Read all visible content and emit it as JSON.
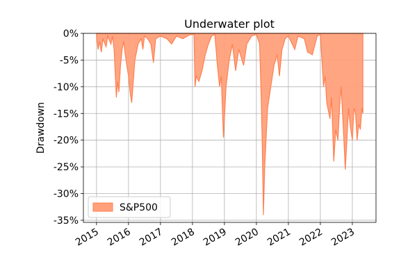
{
  "chart_data": {
    "type": "area",
    "title": "Underwater plot",
    "y_label": "Drawdown",
    "x": [
      2015.0,
      2015.05,
      2015.1,
      2015.15,
      2015.2,
      2015.3,
      2015.35,
      2015.45,
      2015.5,
      2015.55,
      2015.62,
      2015.66,
      2015.7,
      2015.75,
      2015.8,
      2015.85,
      2015.9,
      2015.95,
      2016.0,
      2016.05,
      2016.1,
      2016.15,
      2016.2,
      2016.3,
      2016.4,
      2016.45,
      2016.5,
      2016.6,
      2016.7,
      2016.78,
      2016.85,
      2017.0,
      2017.2,
      2017.35,
      2017.5,
      2017.7,
      2017.9,
      2018.05,
      2018.08,
      2018.12,
      2018.2,
      2018.3,
      2018.4,
      2018.5,
      2018.6,
      2018.7,
      2018.78,
      2018.85,
      2018.9,
      2018.97,
      2019.05,
      2019.15,
      2019.25,
      2019.35,
      2019.45,
      2019.6,
      2019.7,
      2019.85,
      2020.0,
      2020.1,
      2020.15,
      2020.18,
      2020.2,
      2020.22,
      2020.26,
      2020.3,
      2020.35,
      2020.45,
      2020.55,
      2020.65,
      2020.72,
      2020.8,
      2020.9,
      2021.0,
      2021.2,
      2021.3,
      2021.5,
      2021.6,
      2021.75,
      2021.9,
      2022.0,
      2022.05,
      2022.1,
      2022.15,
      2022.2,
      2022.3,
      2022.35,
      2022.42,
      2022.48,
      2022.55,
      2022.6,
      2022.65,
      2022.72,
      2022.78,
      2022.83,
      2022.88,
      2022.93,
      2023.0,
      2023.05,
      2023.1,
      2023.15,
      2023.2,
      2023.25,
      2023.3,
      2023.33
    ],
    "series": [
      {
        "name": "S&P500",
        "color": "#ff7f50",
        "fill": "#ffa07a",
        "values": [
          -0.5,
          -3,
          -1.5,
          -3.5,
          -1,
          -2.5,
          -0.5,
          -2,
          -0.5,
          -3,
          -12,
          -9,
          -11,
          -6,
          -3,
          -1.5,
          -4,
          -6,
          -8,
          -11,
          -13,
          -9,
          -5,
          -2,
          -1,
          -3,
          -0.5,
          -1,
          -2,
          -5.5,
          -1,
          -0.5,
          -1,
          -2,
          -0.5,
          -1,
          -0.3,
          -0.2,
          -10,
          -8,
          -9,
          -7,
          -4,
          -2,
          -0.5,
          -0.2,
          -6,
          -10,
          -8,
          -19.5,
          -10,
          -5,
          -2,
          -7,
          -3,
          -6,
          -2,
          -0.5,
          -0.2,
          -2,
          -12,
          -20,
          -27,
          -34,
          -25,
          -20,
          -14,
          -10,
          -6,
          -4,
          -8,
          -3,
          -1,
          -0.5,
          -3,
          -0.5,
          -1,
          -3.5,
          -4,
          -0.5,
          -0.2,
          -5,
          -10,
          -8,
          -13,
          -16,
          -12,
          -24,
          -18,
          -20,
          -14,
          -10,
          -18,
          -25.5,
          -20,
          -14,
          -17,
          -20,
          -14,
          -15,
          -20,
          -17,
          -18,
          -14,
          -15
        ]
      }
    ],
    "xlim": [
      2014.59,
      2023.74
    ],
    "xticks": [
      2015,
      2016,
      2017,
      2018,
      2019,
      2020,
      2021,
      2022,
      2023
    ],
    "ylim": [
      -35.4,
      0
    ],
    "yticks": [
      {
        "value": 0,
        "label": "0%"
      },
      {
        "value": -5,
        "label": "-5%"
      },
      {
        "value": -10,
        "label": "-10%"
      },
      {
        "value": -15,
        "label": "-15%"
      },
      {
        "value": -20,
        "label": "-20%"
      },
      {
        "value": -25,
        "label": "-25%"
      },
      {
        "value": -30,
        "label": "-30%"
      },
      {
        "value": -35,
        "label": "-35%"
      }
    ],
    "grid": true,
    "legend": "lower left"
  }
}
